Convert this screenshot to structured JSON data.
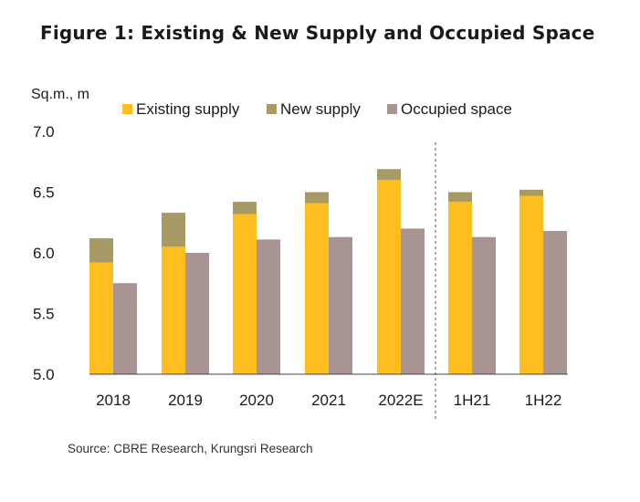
{
  "chart_data": {
    "type": "bar",
    "title": "Figure 1: Existing & New Supply and Occupied Space",
    "ylabel": "Sq.m., m",
    "xlabel": "",
    "ylim": [
      5.0,
      7.0
    ],
    "y_ticks": [
      "5.0",
      "5.5",
      "6.0",
      "6.5",
      "7.0"
    ],
    "categories": [
      "2018",
      "2019",
      "2020",
      "2021",
      "2022E",
      "1H21",
      "1H22"
    ],
    "separator_after_category": "2022E",
    "stacked_series": [
      {
        "name": "Existing supply",
        "color": "#FFBE1F",
        "values": [
          5.92,
          6.05,
          6.32,
          6.41,
          6.6,
          6.42,
          6.47
        ]
      },
      {
        "name": "New supply",
        "color": "#A89A67",
        "values": [
          0.2,
          0.28,
          0.1,
          0.09,
          0.09,
          0.08,
          0.05
        ]
      }
    ],
    "side_series": [
      {
        "name": "Occupied space",
        "color": "#A89492",
        "values": [
          5.75,
          6.0,
          6.11,
          6.13,
          6.2,
          6.13,
          6.18
        ]
      }
    ],
    "legend": {
      "position": "top"
    },
    "grid": false,
    "source": "Source: CBRE Research, Krungsri Research"
  }
}
